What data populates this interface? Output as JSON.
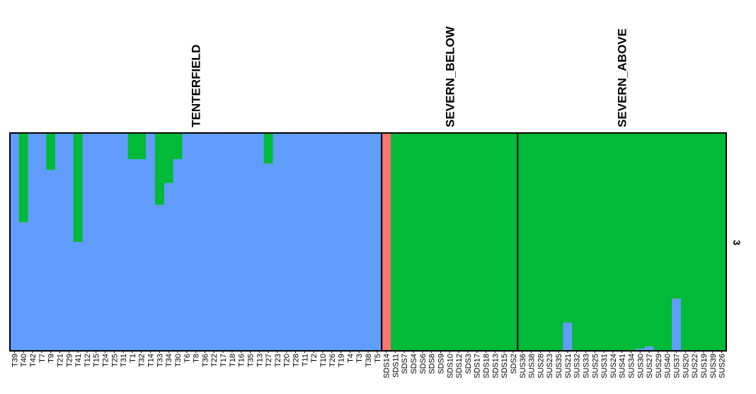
{
  "chart_data": {
    "type": "stacked_bar",
    "side_label": "3",
    "ylim": [
      0,
      1
    ],
    "groups": [
      {
        "name": "TENTERFIELD",
        "categories": [
          "T39",
          "T40",
          "T42",
          "T7",
          "T9",
          "T21",
          "T29",
          "T41",
          "T12",
          "T15",
          "T24",
          "T25",
          "T31",
          "T1",
          "T32",
          "T14",
          "T33",
          "T34",
          "T30",
          "T6",
          "T8",
          "T36",
          "T22",
          "T17",
          "T18",
          "T16",
          "T35",
          "T13",
          "T27",
          "T23",
          "T20",
          "T28",
          "T11",
          "T2",
          "T10",
          "T26",
          "T19",
          "T4",
          "T3",
          "T38",
          "T5"
        ],
        "series": [
          {
            "color": "#619cff",
            "values": [
              1,
              0.59,
              1,
              1,
              0.83,
              1,
              1,
              0.5,
              1,
              1,
              1,
              1,
              1,
              0.88,
              0.88,
              1,
              0.67,
              0.77,
              0.88,
              1,
              1,
              1,
              1,
              1,
              1,
              1,
              1,
              1,
              0.86,
              1,
              1,
              1,
              1,
              1,
              1,
              1,
              1,
              1,
              1,
              1,
              1
            ]
          },
          {
            "color": "#00ba38",
            "values": [
              0,
              0.41,
              0,
              0,
              0.17,
              0,
              0,
              0.5,
              0,
              0,
              0,
              0,
              0,
              0.12,
              0.12,
              0,
              0.33,
              0.23,
              0.12,
              0,
              0,
              0,
              0,
              0,
              0,
              0,
              0,
              0,
              0.14,
              0,
              0,
              0,
              0,
              0,
              0,
              0,
              0,
              0,
              0,
              0,
              0
            ]
          },
          {
            "color": "#f8766d",
            "values": [
              0,
              0,
              0,
              0,
              0,
              0,
              0,
              0,
              0,
              0,
              0,
              0,
              0,
              0,
              0,
              0,
              0,
              0,
              0,
              0,
              0,
              0,
              0,
              0,
              0,
              0,
              0,
              0,
              0,
              0,
              0,
              0,
              0,
              0,
              0,
              0,
              0,
              0,
              0,
              0,
              0
            ]
          }
        ]
      },
      {
        "name": "SEVERN_BELOW",
        "categories": [
          "SDS14",
          "SDS11",
          "SDS7",
          "SDS4",
          "SDS6",
          "SDS8",
          "SDS9",
          "SDS10",
          "SDS12",
          "SDS3",
          "SDS17",
          "SDS18",
          "SDS13",
          "SDS15",
          "SDS2"
        ],
        "series": [
          {
            "color": "#619cff",
            "values": [
              0,
              0,
              0,
              0,
              0,
              0,
              0,
              0,
              0,
              0,
              0,
              0,
              0,
              0,
              0
            ]
          },
          {
            "color": "#00ba38",
            "values": [
              0,
              1,
              1,
              1,
              1,
              1,
              1,
              1,
              1,
              1,
              1,
              1,
              1,
              1,
              1
            ]
          },
          {
            "color": "#f8766d",
            "values": [
              1,
              0,
              0,
              0,
              0,
              0,
              0,
              0,
              0,
              0,
              0,
              0,
              0,
              0,
              0
            ]
          }
        ]
      },
      {
        "name": "SEVERN_ABOVE",
        "categories": [
          "SUS36",
          "SUS38",
          "SUS28",
          "SUS23",
          "SUS35",
          "SUS21",
          "SUS32",
          "SUS33",
          "SUS25",
          "SUS31",
          "SUS24",
          "SUS41",
          "SUS34",
          "SUS30",
          "SUS27",
          "SUS29",
          "SUS40",
          "SUS37",
          "SUS20",
          "SUS22",
          "SUS19",
          "SUS39",
          "SUS26"
        ],
        "series": [
          {
            "color": "#619cff",
            "values": [
              0,
              0,
              0,
              0,
              0,
              0.13,
              0,
              0,
              0,
              0,
              0,
              0,
              0,
              0.01,
              0.02,
              0,
              0,
              0.24,
              0,
              0,
              0,
              0,
              0
            ]
          },
          {
            "color": "#00ba38",
            "values": [
              1,
              1,
              1,
              1,
              1,
              0.87,
              1,
              1,
              1,
              1,
              1,
              1,
              1,
              0.99,
              0.98,
              1,
              1,
              0.76,
              1,
              1,
              1,
              1,
              1
            ]
          },
          {
            "color": "#f8766d",
            "values": [
              0,
              0,
              0,
              0,
              0,
              0,
              0,
              0,
              0,
              0,
              0,
              0,
              0,
              0,
              0,
              0,
              0,
              0,
              0,
              0,
              0,
              0,
              0
            ]
          }
        ]
      }
    ]
  }
}
